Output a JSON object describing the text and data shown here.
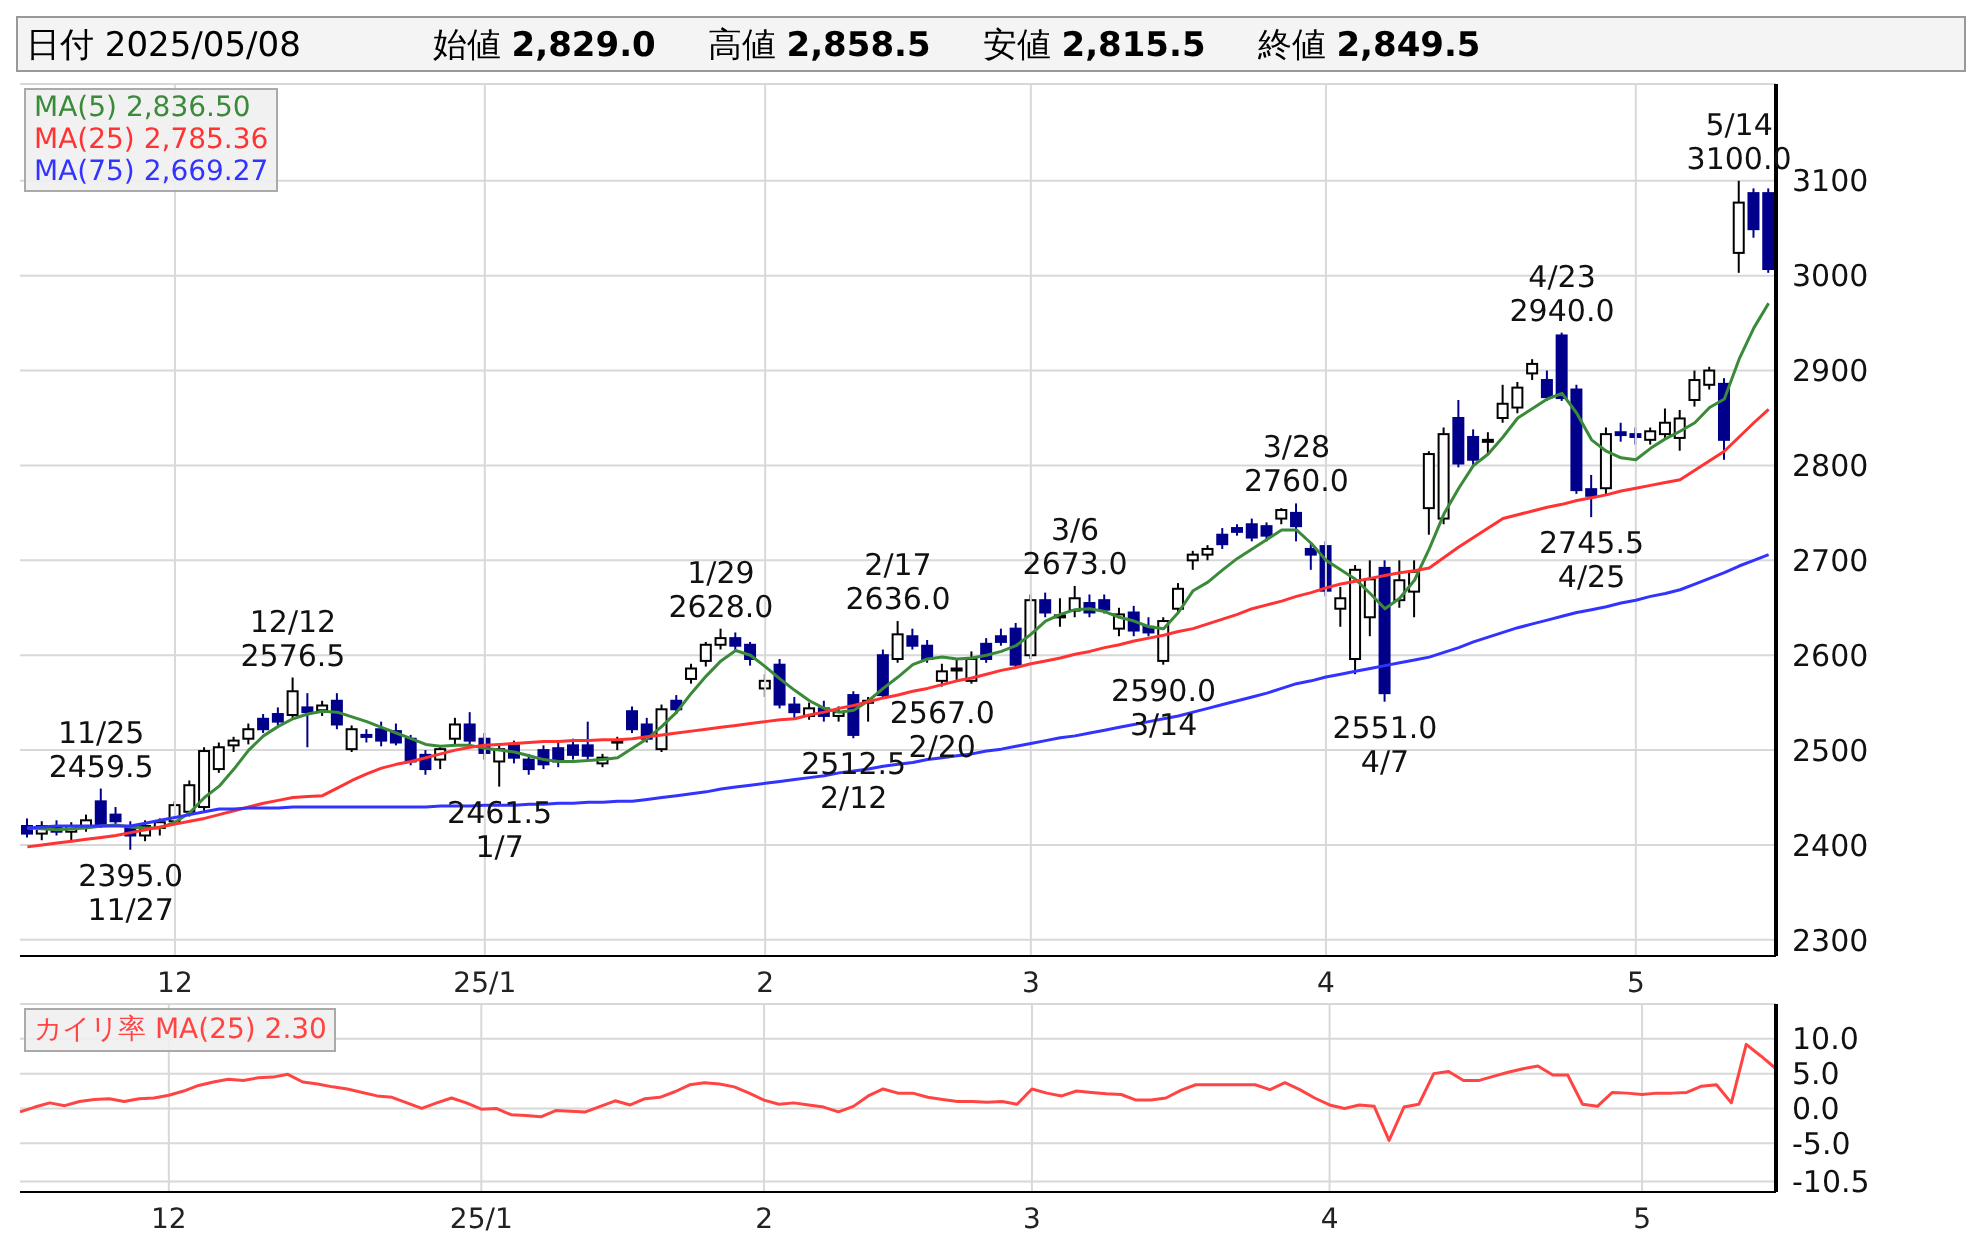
{
  "chart_data": [
    {
      "type": "candlestick",
      "categories": [
        null,
        null,
        null,
        null,
        null,
        null,
        null,
        null,
        null,
        null,
        "12",
        null,
        null,
        null,
        null,
        null,
        null,
        null,
        null,
        null,
        null,
        null,
        null,
        null,
        null,
        null,
        null,
        null,
        null,
        null,
        null,
        "25/1",
        null,
        null,
        null,
        null,
        null,
        null,
        null,
        null,
        null,
        null,
        null,
        null,
        null,
        null,
        null,
        null,
        null,
        null,
        "2",
        null,
        null,
        null,
        null,
        null,
        null,
        null,
        null,
        null,
        null,
        null,
        null,
        null,
        null,
        null,
        null,
        null,
        "3",
        null,
        null,
        null,
        null,
        null,
        null,
        null,
        null,
        null,
        null,
        null,
        null,
        null,
        null,
        null,
        null,
        null,
        null,
        null,
        "4",
        null,
        null,
        null,
        null,
        null,
        null,
        null,
        null,
        null,
        null,
        null,
        null,
        null,
        null,
        null,
        null,
        null,
        null,
        null,
        null,
        "5",
        null,
        null,
        null,
        null,
        null,
        null,
        null,
        null,
        null
      ],
      "ohlc": [
        [
          2420,
          2428,
          2408,
          2412
        ],
        [
          2412,
          2425,
          2405,
          2420
        ],
        [
          2418,
          2426,
          2410,
          2414
        ],
        [
          2414,
          2424,
          2404,
          2420
        ],
        [
          2420,
          2432,
          2414,
          2426
        ],
        [
          2446,
          2459.5,
          2418,
          2421
        ],
        [
          2432,
          2440,
          2420,
          2425
        ],
        [
          2418,
          2425,
          2395,
          2410
        ],
        [
          2410,
          2426,
          2404,
          2420
        ],
        [
          2418,
          2428,
          2410,
          2424
        ],
        [
          2425,
          2446,
          2420,
          2442
        ],
        [
          2435,
          2468,
          2430,
          2463
        ],
        [
          2440,
          2503,
          2436,
          2499
        ],
        [
          2480,
          2508,
          2476,
          2503
        ],
        [
          2505,
          2514,
          2498,
          2510
        ],
        [
          2512,
          2528,
          2506,
          2522
        ],
        [
          2533,
          2538,
          2518,
          2522
        ],
        [
          2538,
          2545,
          2526,
          2530
        ],
        [
          2537,
          2576.5,
          2533,
          2562
        ],
        [
          2545,
          2560,
          2503,
          2540
        ],
        [
          2542,
          2552,
          2536,
          2547
        ],
        [
          2552,
          2560,
          2522,
          2527
        ],
        [
          2501,
          2526,
          2498,
          2522
        ],
        [
          2516,
          2522,
          2508,
          2515
        ],
        [
          2522,
          2530,
          2504,
          2510
        ],
        [
          2520,
          2528,
          2505,
          2508
        ],
        [
          2512,
          2516,
          2484,
          2488
        ],
        [
          2495,
          2500,
          2474,
          2480
        ],
        [
          2490,
          2505,
          2480,
          2501
        ],
        [
          2512,
          2534,
          2506,
          2527
        ],
        [
          2527,
          2540,
          2505,
          2510
        ],
        [
          2512,
          2518,
          2490,
          2497
        ],
        [
          2488,
          2506,
          2461.5,
          2501
        ],
        [
          2505,
          2510,
          2486,
          2492
        ],
        [
          2490,
          2496,
          2474,
          2480
        ],
        [
          2500,
          2505,
          2480,
          2485
        ],
        [
          2502,
          2508,
          2482,
          2488
        ],
        [
          2505,
          2512,
          2490,
          2495
        ],
        [
          2505,
          2530,
          2490,
          2494
        ],
        [
          2486,
          2496,
          2482,
          2492
        ],
        [
          2508,
          2514,
          2500,
          2510
        ],
        [
          2541,
          2546,
          2518,
          2522
        ],
        [
          2527,
          2534,
          2508,
          2512
        ],
        [
          2501,
          2548,
          2498,
          2543
        ],
        [
          2552,
          2558,
          2538,
          2543
        ],
        [
          2575,
          2591,
          2570,
          2586
        ],
        [
          2594,
          2614,
          2588,
          2611
        ],
        [
          2611,
          2628,
          2606,
          2618
        ],
        [
          2618,
          2624,
          2604,
          2610
        ],
        [
          2611,
          2614,
          2589,
          2596
        ],
        [
          2565,
          2580,
          2556,
          2573
        ],
        [
          2590,
          2596,
          2544,
          2548
        ],
        [
          2548,
          2556,
          2534,
          2540
        ],
        [
          2536,
          2550,
          2532,
          2544
        ],
        [
          2544,
          2552,
          2530,
          2536
        ],
        [
          2536,
          2546,
          2530,
          2540
        ],
        [
          2558,
          2562,
          2512.5,
          2516
        ],
        [
          2550,
          2556,
          2530,
          2552
        ],
        [
          2600,
          2606,
          2554,
          2558
        ],
        [
          2596,
          2636,
          2592,
          2622
        ],
        [
          2620,
          2628,
          2606,
          2610
        ],
        [
          2610,
          2616,
          2592,
          2596
        ],
        [
          2573,
          2591,
          2567,
          2583
        ],
        [
          2585,
          2596,
          2574,
          2586
        ],
        [
          2573,
          2604,
          2570,
          2596
        ],
        [
          2612,
          2618,
          2592,
          2596
        ],
        [
          2620,
          2628,
          2610,
          2614
        ],
        [
          2628,
          2634,
          2586,
          2590
        ],
        [
          2600,
          2664,
          2596,
          2658
        ],
        [
          2658,
          2666,
          2640,
          2645
        ],
        [
          2640,
          2660,
          2630,
          2642
        ],
        [
          2647,
          2673,
          2640,
          2660
        ],
        [
          2655,
          2664,
          2640,
          2645
        ],
        [
          2658,
          2664,
          2644,
          2648
        ],
        [
          2628,
          2650,
          2620,
          2643
        ],
        [
          2645,
          2652,
          2620,
          2626
        ],
        [
          2630,
          2640,
          2620,
          2624
        ],
        [
          2594,
          2640,
          2590,
          2636
        ],
        [
          2649,
          2676,
          2645,
          2670
        ],
        [
          2700,
          2710,
          2690,
          2706
        ],
        [
          2706,
          2716,
          2700,
          2712
        ],
        [
          2727,
          2734,
          2712,
          2717
        ],
        [
          2734,
          2738,
          2726,
          2730
        ],
        [
          2738,
          2744,
          2720,
          2724
        ],
        [
          2736,
          2740,
          2720,
          2726
        ],
        [
          2744,
          2755,
          2738,
          2753
        ],
        [
          2750,
          2760,
          2720,
          2736
        ],
        [
          2712,
          2718,
          2690,
          2706
        ],
        [
          2715,
          2720,
          2662,
          2668
        ],
        [
          2649,
          2672,
          2630,
          2660
        ],
        [
          2596,
          2695,
          2580,
          2690
        ],
        [
          2640,
          2700,
          2620,
          2680
        ],
        [
          2692,
          2700,
          2551,
          2560
        ],
        [
          2658,
          2700,
          2650,
          2679
        ],
        [
          2667,
          2700,
          2640,
          2688
        ],
        [
          2755,
          2815,
          2727,
          2812
        ],
        [
          2744,
          2840,
          2738,
          2833
        ],
        [
          2850,
          2869,
          2798,
          2802
        ],
        [
          2830,
          2838,
          2800,
          2806
        ],
        [
          2825,
          2835,
          2812,
          2827
        ],
        [
          2850,
          2885,
          2845,
          2865
        ],
        [
          2861,
          2888,
          2855,
          2882
        ],
        [
          2897,
          2912,
          2890,
          2907
        ],
        [
          2890,
          2900,
          2868,
          2872
        ],
        [
          2937,
          2940,
          2868,
          2871
        ],
        [
          2880,
          2885,
          2770,
          2774
        ],
        [
          2775,
          2790,
          2745.5,
          2768
        ],
        [
          2776,
          2840,
          2770,
          2833
        ],
        [
          2835,
          2845,
          2825,
          2832
        ],
        [
          2833,
          2840,
          2822,
          2830
        ],
        [
          2827,
          2840,
          2822,
          2836
        ],
        [
          2833,
          2860,
          2828,
          2845
        ],
        [
          2829,
          2858.5,
          2815.5,
          2849.5
        ],
        [
          2869,
          2900,
          2862,
          2890
        ],
        [
          2885,
          2904,
          2880,
          2900
        ],
        [
          2886,
          2892,
          2806,
          2827
        ],
        [
          3024,
          3100,
          3003,
          3077
        ],
        [
          3087,
          3092,
          3040,
          3049
        ],
        [
          3087,
          3092,
          3003,
          3007
        ]
      ],
      "series": [
        {
          "name": "MA(5) 2,836.50",
          "type": "line",
          "color": "#3a8a3a",
          "values": [
            2418,
            2417,
            2416,
            2417,
            2418,
            2420,
            2421,
            2419,
            2418,
            2418,
            2424,
            2434,
            2450,
            2462,
            2480,
            2500,
            2515,
            2525,
            2533,
            2538,
            2541,
            2540,
            2535,
            2530,
            2524,
            2518,
            2512,
            2506,
            2504,
            2505,
            2505,
            2502,
            2500,
            2498,
            2494,
            2490,
            2488,
            2488,
            2489,
            2490,
            2492,
            2502,
            2512,
            2525,
            2540,
            2560,
            2578,
            2594,
            2605,
            2600,
            2588,
            2575,
            2563,
            2552,
            2544,
            2540,
            2542,
            2552,
            2565,
            2577,
            2590,
            2596,
            2598,
            2596,
            2597,
            2600,
            2604,
            2610,
            2622,
            2636,
            2643,
            2648,
            2649,
            2646,
            2640,
            2636,
            2630,
            2628,
            2645,
            2668,
            2677,
            2690,
            2702,
            2712,
            2722,
            2732,
            2732,
            2718,
            2700,
            2690,
            2680,
            2665,
            2649,
            2660,
            2679,
            2712,
            2749,
            2776,
            2800,
            2812,
            2830,
            2850,
            2860,
            2870,
            2876,
            2855,
            2827,
            2815,
            2808,
            2806,
            2818,
            2828,
            2836,
            2845,
            2861,
            2870,
            2912,
            2945,
            2971
          ]
        },
        {
          "name": "MA(25) 2,785.36",
          "type": "line",
          "color": "#ff3333",
          "values": [
            2398,
            2400,
            2402,
            2404,
            2406,
            2408,
            2410,
            2413,
            2416,
            2419,
            2422,
            2425,
            2428,
            2432,
            2436,
            2440,
            2444,
            2447,
            2450,
            2451,
            2452,
            2460,
            2468,
            2475,
            2481,
            2485,
            2488,
            2492,
            2496,
            2500,
            2503,
            2505,
            2506,
            2507,
            2508,
            2509,
            2509,
            2510,
            2510,
            2511,
            2511,
            2512,
            2514,
            2516,
            2518,
            2520,
            2522,
            2524,
            2526,
            2528,
            2530,
            2532,
            2533,
            2537,
            2540,
            2544,
            2547,
            2551,
            2555,
            2558,
            2562,
            2565,
            2569,
            2573,
            2576,
            2580,
            2584,
            2587,
            2591,
            2594,
            2597,
            2601,
            2604,
            2608,
            2611,
            2615,
            2618,
            2621,
            2625,
            2628,
            2633,
            2638,
            2643,
            2649,
            2653,
            2657,
            2662,
            2666,
            2671,
            2675,
            2678,
            2681,
            2684,
            2687,
            2689,
            2692,
            2703,
            2714,
            2724,
            2734,
            2744,
            2748,
            2752,
            2756,
            2759,
            2763,
            2766,
            2769,
            2773,
            2776,
            2779,
            2782,
            2785,
            2795,
            2805,
            2815,
            2830,
            2845,
            2859
          ]
        },
        {
          "name": "MA(75) 2,669.27",
          "type": "line",
          "color": "#3333ff",
          "values": [
            2418,
            2419,
            2420,
            2420,
            2420,
            2420,
            2420,
            2420,
            2423,
            2426,
            2429,
            2432,
            2435,
            2438,
            2438,
            2439,
            2439,
            2439,
            2440,
            2440,
            2440,
            2440,
            2440,
            2440,
            2440,
            2440,
            2440,
            2440,
            2441,
            2441,
            2441,
            2442,
            2442,
            2442,
            2443,
            2443,
            2444,
            2444,
            2445,
            2445,
            2446,
            2446,
            2448,
            2450,
            2452,
            2454,
            2456,
            2459,
            2461,
            2463,
            2465,
            2467,
            2469,
            2471,
            2473,
            2476,
            2478,
            2480,
            2483,
            2485,
            2487,
            2490,
            2492,
            2494,
            2496,
            2499,
            2501,
            2504,
            2507,
            2510,
            2513,
            2515,
            2518,
            2521,
            2524,
            2527,
            2530,
            2533,
            2536,
            2540,
            2544,
            2548,
            2552,
            2556,
            2560,
            2565,
            2570,
            2573,
            2577,
            2580,
            2583,
            2586,
            2589,
            2592,
            2595,
            2598,
            2603,
            2608,
            2614,
            2619,
            2624,
            2629,
            2633,
            2637,
            2641,
            2645,
            2648,
            2651,
            2655,
            2658,
            2662,
            2665,
            2669,
            2675,
            2681,
            2687,
            2694,
            2700,
            2706
          ]
        }
      ],
      "ylim": [
        2283,
        3202
      ],
      "yticks": [
        2300,
        2400,
        2500,
        2600,
        2700,
        2800,
        2900,
        3000,
        3100
      ],
      "grid": true,
      "legend": "top left",
      "marker": "none",
      "annotations": [
        "日付 2025/05/08",
        "始値 2,829.0",
        "高値 2,858.5",
        "安値 2,815.5",
        "終値 2,849.5",
        {
          "text": "11/25\n2459.5",
          "y": 2459.5
        },
        {
          "text": "12/12\n2576.5",
          "y": 2576.5
        },
        {
          "text": "1/29\n2628.0",
          "y": 2628
        },
        {
          "text": "2/17\n2636.0",
          "y": 2636
        },
        {
          "text": "3/6\n2673.0",
          "y": 2673
        },
        {
          "text": "3/28\n2760.0",
          "y": 2760
        },
        {
          "text": "4/23\n2940.0",
          "y": 2940
        },
        {
          "text": "5/14\n3100.0",
          "y": 3100
        },
        {
          "text": "2395.0\n11/27",
          "y": 2395
        },
        {
          "text": "2461.5\n1/7",
          "y": 2461.5
        },
        {
          "text": "2512.5\n2/12",
          "y": 2512.5
        },
        {
          "text": "2567.0\n2/20",
          "y": 2567
        },
        {
          "text": "2590.0\n3/14",
          "y": 2590
        },
        {
          "text": "2551.0\n4/7",
          "y": 2551
        },
        {
          "text": "2745.5\n4/25",
          "y": 2745.5
        }
      ]
    },
    {
      "type": "line",
      "categories": [
        null,
        null,
        null,
        null,
        null,
        null,
        null,
        null,
        null,
        null,
        "12",
        null,
        null,
        null,
        null,
        null,
        null,
        null,
        null,
        null,
        null,
        null,
        null,
        null,
        null,
        null,
        null,
        null,
        null,
        null,
        null,
        "25/1",
        null,
        null,
        null,
        null,
        null,
        null,
        null,
        null,
        null,
        null,
        null,
        null,
        null,
        null,
        null,
        null,
        null,
        null,
        "2",
        null,
        null,
        null,
        null,
        null,
        null,
        null,
        null,
        null,
        null,
        null,
        null,
        null,
        null,
        null,
        null,
        null,
        "3",
        null,
        null,
        null,
        null,
        null,
        null,
        null,
        null,
        null,
        null,
        null,
        null,
        null,
        null,
        null,
        null,
        null,
        null,
        null,
        "4",
        null,
        null,
        null,
        null,
        null,
        null,
        null,
        null,
        null,
        null,
        null,
        null,
        null,
        null,
        null,
        null,
        null,
        null,
        null,
        null,
        "5",
        null,
        null,
        null,
        null,
        null,
        null,
        null,
        null,
        null
      ],
      "series": [
        {
          "name": "カイリ率 MA(25) 2.30",
          "color": "#ff4444",
          "values": [
            -0.5,
            0.2,
            0.8,
            0.4,
            1.0,
            1.3,
            1.4,
            1.0,
            1.4,
            1.5,
            1.9,
            2.5,
            3.3,
            3.8,
            4.2,
            4.0,
            4.4,
            4.5,
            4.9,
            3.8,
            3.5,
            3.1,
            2.8,
            2.3,
            1.8,
            1.6,
            0.8,
            0.0,
            0.8,
            1.5,
            0.8,
            -0.1,
            0.0,
            -0.9,
            -1.0,
            -1.2,
            -0.3,
            -0.4,
            -0.5,
            0.3,
            1.1,
            0.5,
            1.4,
            1.6,
            2.4,
            3.4,
            3.7,
            3.5,
            3.1,
            2.2,
            1.2,
            0.6,
            0.8,
            0.5,
            0.2,
            -0.5,
            0.3,
            1.8,
            2.8,
            2.2,
            2.2,
            1.6,
            1.3,
            1.0,
            1.0,
            0.9,
            1.0,
            0.6,
            2.8,
            2.2,
            1.8,
            2.5,
            2.3,
            2.1,
            2.0,
            1.2,
            1.2,
            1.5,
            2.6,
            3.4,
            3.4,
            3.4,
            3.4,
            3.4,
            2.7,
            3.7,
            2.7,
            1.5,
            0.5,
            0.0,
            0.5,
            0.3,
            -4.6,
            0.2,
            0.6,
            5.0,
            5.3,
            4.0,
            4.0,
            4.6,
            5.2,
            5.7,
            6.1,
            4.8,
            4.8,
            0.6,
            0.3,
            2.3,
            2.2,
            2.0,
            2.2,
            2.2,
            2.3,
            3.2,
            3.4,
            0.8,
            9.2,
            7.5,
            5.7
          ]
        }
      ],
      "ylim": [
        -12,
        15
      ],
      "yticks": [
        {
          "value": 10,
          "label": "10.0"
        },
        {
          "value": 5,
          "label": "5.0"
        },
        {
          "value": 0,
          "label": "0.0"
        },
        {
          "value": -5,
          "label": "-5.0"
        },
        {
          "value": -10.5,
          "label": "-10.5"
        }
      ],
      "grid": true,
      "legend": "top left",
      "marker": "none"
    }
  ]
}
